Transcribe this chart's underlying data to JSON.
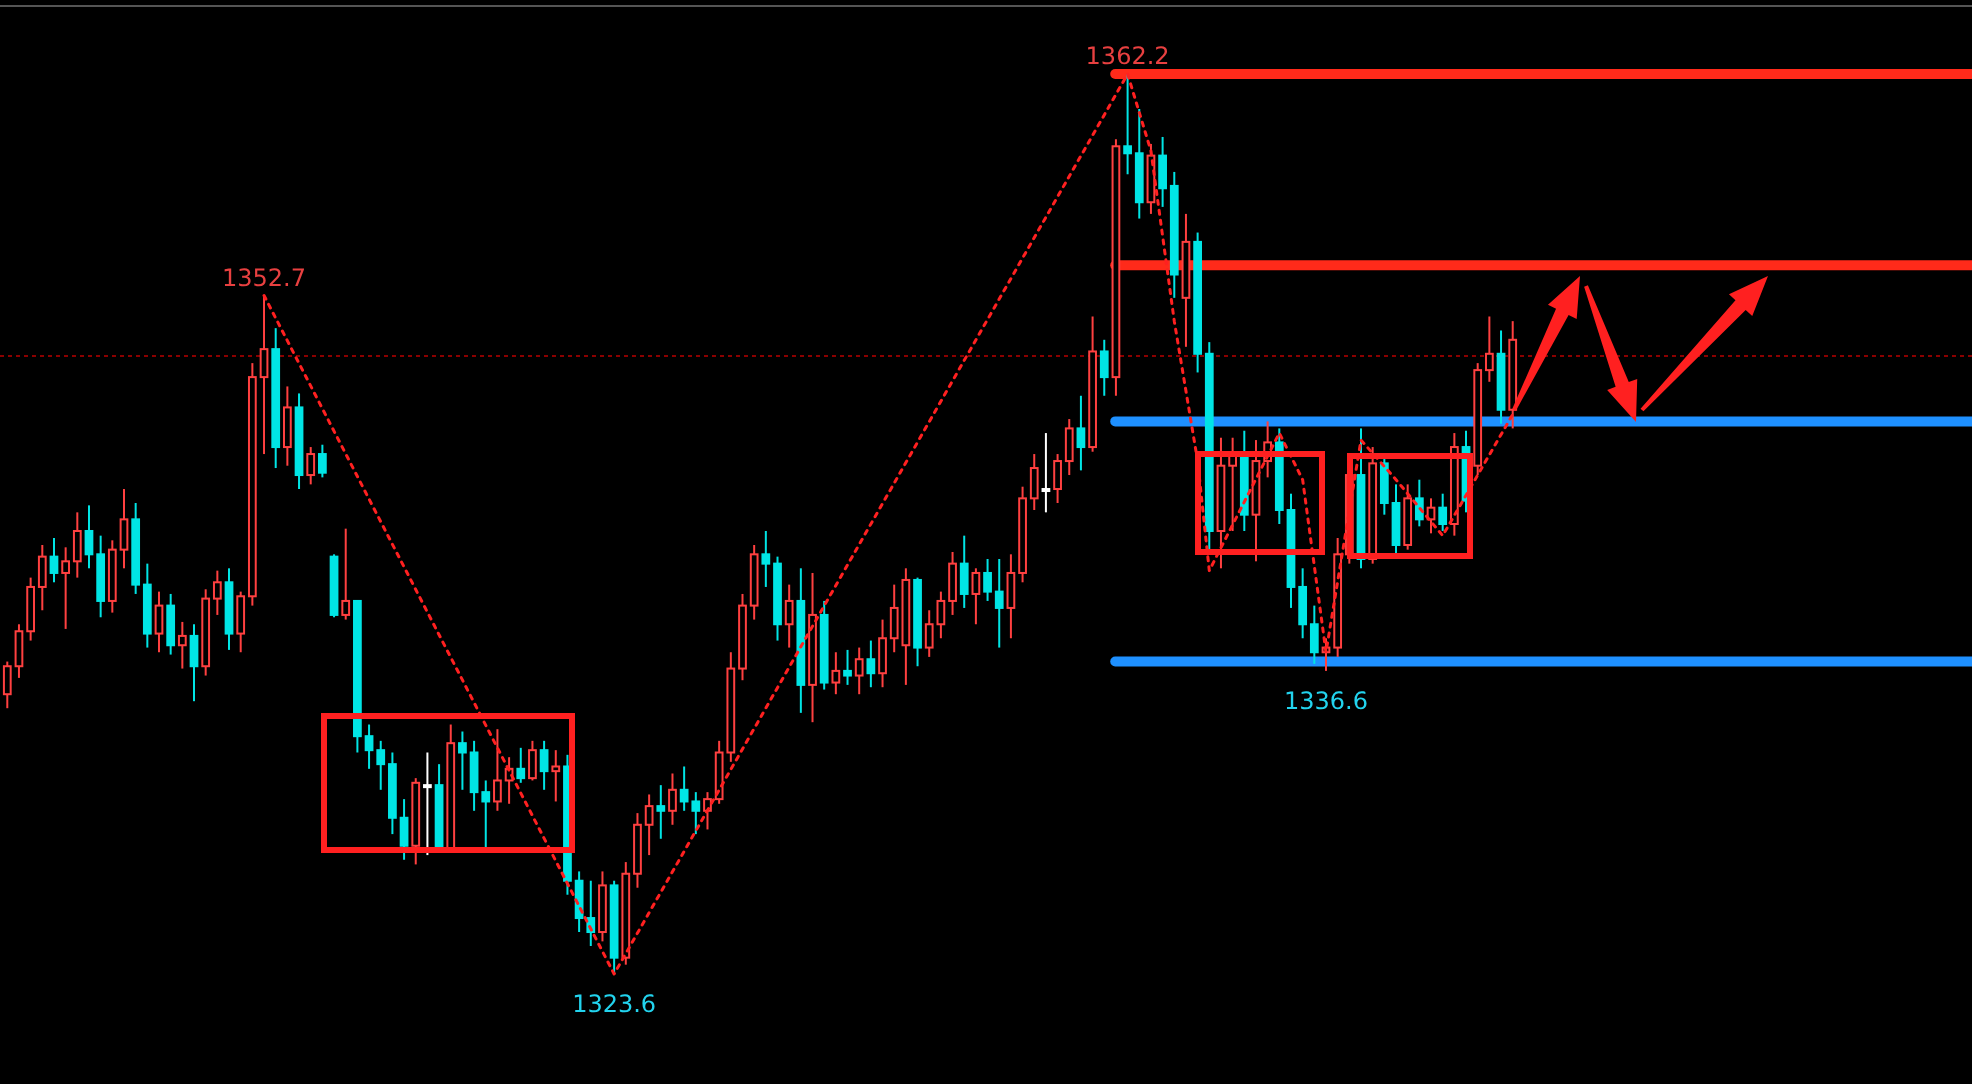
{
  "chart_data": {
    "type": "candlestick",
    "tick_labels": false,
    "grid": false,
    "categories": [
      null,
      null,
      null,
      null,
      null,
      null,
      null,
      null,
      null,
      null,
      null,
      null,
      null,
      null,
      null,
      null,
      null,
      null,
      null,
      null,
      null,
      null,
      null,
      null,
      null,
      null,
      null,
      null,
      null,
      null,
      null,
      null,
      null,
      null,
      null,
      null,
      null,
      null,
      null,
      null,
      null,
      null,
      null,
      null,
      null,
      null,
      null,
      null,
      null,
      null,
      null,
      null,
      null,
      null,
      null,
      null,
      null,
      null,
      null,
      null,
      null,
      null,
      null,
      null,
      null,
      null,
      null,
      null,
      null,
      null,
      null,
      null,
      null,
      null,
      null,
      null,
      null,
      null,
      null,
      null,
      null,
      null,
      null,
      null,
      null,
      null,
      null,
      null,
      null,
      null,
      null,
      null,
      null,
      null,
      null,
      null,
      null,
      null,
      null,
      null,
      null,
      null,
      null,
      null,
      null,
      null,
      null,
      null,
      null,
      null,
      null,
      null,
      null,
      null,
      null,
      null,
      null,
      null,
      null,
      null,
      null,
      null,
      null,
      null,
      null,
      null,
      null,
      null,
      null,
      null
    ],
    "ohlc": [
      [
        1335.6,
        1337.0,
        1335.0,
        1336.8
      ],
      [
        1336.8,
        1338.6,
        1336.3,
        1338.3
      ],
      [
        1338.3,
        1340.6,
        1337.9,
        1340.2
      ],
      [
        1340.2,
        1342.0,
        1339.2,
        1341.5
      ],
      [
        1341.5,
        1342.3,
        1340.4,
        1340.8
      ],
      [
        1340.8,
        1341.9,
        1338.4,
        1341.3
      ],
      [
        1341.3,
        1343.4,
        1340.6,
        1342.6
      ],
      [
        1342.6,
        1343.7,
        1341.0,
        1341.6
      ],
      [
        1341.6,
        1342.4,
        1338.9,
        1339.6
      ],
      [
        1339.6,
        1342.2,
        1339.1,
        1341.8
      ],
      [
        1341.8,
        1344.4,
        1341.0,
        1343.1
      ],
      [
        1343.1,
        1343.8,
        1339.9,
        1340.3
      ],
      [
        1340.3,
        1341.2,
        1337.6,
        1338.2
      ],
      [
        1338.2,
        1340.0,
        1337.4,
        1339.4
      ],
      [
        1339.4,
        1339.9,
        1337.3,
        1337.7
      ],
      [
        1337.7,
        1338.7,
        1336.7,
        1338.1
      ],
      [
        1338.1,
        1338.6,
        1335.3,
        1336.8
      ],
      [
        1336.8,
        1340.1,
        1336.4,
        1339.7
      ],
      [
        1339.7,
        1340.9,
        1339.0,
        1340.4
      ],
      [
        1340.4,
        1341.0,
        1337.5,
        1338.2
      ],
      [
        1338.2,
        1340.0,
        1337.4,
        1339.8
      ],
      [
        1339.8,
        1349.8,
        1339.4,
        1349.2
      ],
      [
        1349.2,
        1352.7,
        1345.9,
        1350.4
      ],
      [
        1350.4,
        1351.3,
        1345.3,
        1346.2
      ],
      [
        1346.2,
        1348.8,
        1345.4,
        1347.9
      ],
      [
        1347.9,
        1348.5,
        1344.4,
        1345.0
      ],
      [
        1345.0,
        1346.2,
        1344.6,
        1345.9
      ],
      [
        1345.9,
        1346.3,
        1344.9,
        1345.1
      ],
      [
        1341.5,
        1341.6,
        1338.9,
        1339.0
      ],
      [
        1339.0,
        1342.7,
        1338.8,
        1339.6
      ],
      [
        1339.6,
        1339.6,
        1333.1,
        1333.8
      ],
      [
        1333.8,
        1334.3,
        1332.4,
        1333.2
      ],
      [
        1333.2,
        1333.6,
        1331.5,
        1332.6
      ],
      [
        1332.6,
        1333.1,
        1329.6,
        1330.3
      ],
      [
        1330.3,
        1331.1,
        1328.5,
        1329.1
      ],
      [
        1329.1,
        1332.0,
        1328.3,
        1331.8
      ],
      [
        1331.7,
        1333.1,
        1328.7,
        1331.7
      ],
      [
        1331.7,
        1332.6,
        1328.9,
        1329.0
      ],
      [
        1329.0,
        1334.3,
        1328.9,
        1333.5
      ],
      [
        1333.5,
        1334.0,
        1331.5,
        1333.1
      ],
      [
        1333.1,
        1333.6,
        1330.6,
        1331.4
      ],
      [
        1331.4,
        1331.9,
        1329.0,
        1331.0
      ],
      [
        1331.0,
        1334.1,
        1330.6,
        1331.9
      ],
      [
        1331.9,
        1332.9,
        1330.9,
        1332.4
      ],
      [
        1332.4,
        1333.3,
        1331.8,
        1332.0
      ],
      [
        1332.0,
        1333.6,
        1331.9,
        1333.2
      ],
      [
        1333.2,
        1333.6,
        1331.5,
        1332.3
      ],
      [
        1332.3,
        1333.2,
        1331.0,
        1332.5
      ],
      [
        1332.5,
        1333.0,
        1327.0,
        1327.6
      ],
      [
        1327.6,
        1328.0,
        1325.4,
        1326.0
      ],
      [
        1326.0,
        1327.6,
        1324.8,
        1325.4
      ],
      [
        1325.4,
        1328.0,
        1325.0,
        1327.4
      ],
      [
        1327.4,
        1327.6,
        1323.6,
        1324.3
      ],
      [
        1324.3,
        1328.4,
        1324.0,
        1327.9
      ],
      [
        1327.9,
        1330.5,
        1327.3,
        1330.0
      ],
      [
        1330.0,
        1331.3,
        1328.7,
        1330.8
      ],
      [
        1330.8,
        1331.7,
        1329.4,
        1330.6
      ],
      [
        1330.6,
        1332.2,
        1330.0,
        1331.5
      ],
      [
        1331.5,
        1332.5,
        1330.6,
        1331.0
      ],
      [
        1331.0,
        1331.4,
        1329.6,
        1330.6
      ],
      [
        1330.6,
        1331.4,
        1329.8,
        1331.1
      ],
      [
        1331.1,
        1333.6,
        1330.9,
        1333.1
      ],
      [
        1333.1,
        1337.4,
        1332.7,
        1336.7
      ],
      [
        1336.7,
        1339.9,
        1336.2,
        1339.4
      ],
      [
        1339.4,
        1342.0,
        1338.8,
        1341.6
      ],
      [
        1341.6,
        1342.6,
        1340.2,
        1341.2
      ],
      [
        1341.2,
        1341.5,
        1337.9,
        1338.6
      ],
      [
        1338.6,
        1340.3,
        1337.6,
        1339.6
      ],
      [
        1339.6,
        1341.0,
        1334.8,
        1336.0
      ],
      [
        1336.0,
        1340.8,
        1334.4,
        1339.0
      ],
      [
        1339.0,
        1339.6,
        1335.8,
        1336.1
      ],
      [
        1336.1,
        1337.4,
        1335.6,
        1336.6
      ],
      [
        1336.6,
        1337.5,
        1336.0,
        1336.4
      ],
      [
        1336.4,
        1337.6,
        1335.6,
        1337.1
      ],
      [
        1337.1,
        1337.9,
        1335.9,
        1336.5
      ],
      [
        1336.5,
        1338.8,
        1335.9,
        1338.0
      ],
      [
        1338.0,
        1340.3,
        1337.4,
        1339.3
      ],
      [
        1337.7,
        1341.0,
        1336.0,
        1340.5
      ],
      [
        1340.5,
        1340.6,
        1336.8,
        1337.6
      ],
      [
        1337.6,
        1339.2,
        1337.2,
        1338.6
      ],
      [
        1338.6,
        1340.0,
        1338.0,
        1339.6
      ],
      [
        1339.6,
        1341.7,
        1339.0,
        1341.2
      ],
      [
        1341.2,
        1342.4,
        1339.3,
        1339.9
      ],
      [
        1339.9,
        1341.0,
        1338.6,
        1340.8
      ],
      [
        1340.8,
        1341.4,
        1339.6,
        1340.0
      ],
      [
        1340.0,
        1341.4,
        1337.6,
        1339.3
      ],
      [
        1339.3,
        1341.6,
        1338.0,
        1340.8
      ],
      [
        1340.8,
        1344.5,
        1340.4,
        1344.0
      ],
      [
        1344.0,
        1345.9,
        1343.5,
        1345.3
      ],
      [
        1344.4,
        1346.8,
        1343.4,
        1344.4
      ],
      [
        1344.4,
        1345.9,
        1343.8,
        1345.6
      ],
      [
        1345.6,
        1347.4,
        1345.0,
        1347.0
      ],
      [
        1347.0,
        1348.4,
        1345.2,
        1346.2
      ],
      [
        1346.2,
        1351.8,
        1346.0,
        1350.3
      ],
      [
        1350.3,
        1350.8,
        1348.4,
        1349.2
      ],
      [
        1349.2,
        1359.4,
        1348.4,
        1359.1
      ],
      [
        1359.1,
        1362.2,
        1357.9,
        1358.8
      ],
      [
        1358.8,
        1360.7,
        1356.0,
        1356.7
      ],
      [
        1356.7,
        1359.2,
        1356.2,
        1358.7
      ],
      [
        1358.7,
        1359.5,
        1356.5,
        1357.3
      ],
      [
        1357.4,
        1358.0,
        1352.6,
        1353.6
      ],
      [
        1352.6,
        1356.2,
        1350.5,
        1355.0
      ],
      [
        1355.0,
        1355.4,
        1349.4,
        1350.2
      ],
      [
        1350.2,
        1350.7,
        1341.8,
        1342.6
      ],
      [
        1342.6,
        1346.6,
        1341.0,
        1345.4
      ],
      [
        1345.4,
        1346.6,
        1342.6,
        1345.9
      ],
      [
        1345.9,
        1346.9,
        1342.6,
        1343.3
      ],
      [
        1343.3,
        1346.5,
        1341.3,
        1345.6
      ],
      [
        1345.6,
        1347.3,
        1344.9,
        1346.4
      ],
      [
        1346.4,
        1347.0,
        1342.9,
        1343.5
      ],
      [
        1343.5,
        1344.2,
        1339.3,
        1340.2
      ],
      [
        1340.2,
        1341.0,
        1338.0,
        1338.6
      ],
      [
        1338.6,
        1339.4,
        1336.9,
        1337.4
      ],
      [
        1337.4,
        1338.0,
        1336.6,
        1337.6
      ],
      [
        1337.6,
        1342.3,
        1337.2,
        1341.6
      ],
      [
        1341.6,
        1345.6,
        1341.2,
        1345.0
      ],
      [
        1345.0,
        1347.0,
        1341.0,
        1341.4
      ],
      [
        1341.4,
        1346.2,
        1341.2,
        1345.5
      ],
      [
        1345.5,
        1345.9,
        1343.3,
        1343.8
      ],
      [
        1343.8,
        1344.6,
        1341.5,
        1342.0
      ],
      [
        1342.0,
        1344.6,
        1341.8,
        1344.0
      ],
      [
        1344.0,
        1344.8,
        1342.8,
        1343.1
      ],
      [
        1343.1,
        1344.0,
        1342.5,
        1343.6
      ],
      [
        1343.6,
        1344.2,
        1342.6,
        1342.9
      ],
      [
        1342.9,
        1346.8,
        1342.4,
        1346.2
      ],
      [
        1346.2,
        1346.9,
        1343.4,
        1343.9
      ],
      [
        1345.4,
        1349.8,
        1345.0,
        1349.5
      ],
      [
        1349.5,
        1351.8,
        1349.0,
        1350.2
      ],
      [
        1350.2,
        1351.2,
        1347.2,
        1347.8
      ],
      [
        1347.8,
        1351.6,
        1347.0,
        1350.8
      ]
    ],
    "colors": [
      "#ff4040",
      "#ff4040",
      "#ff4040",
      "#ff4040",
      "#00e5e5",
      "#ff4040",
      "#ff4040",
      "#00e5e5",
      "#00e5e5",
      "#ff4040",
      "#ff4040",
      "#00e5e5",
      "#00e5e5",
      "#ff4040",
      "#00e5e5",
      "#ff4040",
      "#00e5e5",
      "#ff4040",
      "#ff4040",
      "#00e5e5",
      "#ff4040",
      "#ff4040",
      "#ff4040",
      "#00e5e5",
      "#ff4040",
      "#00e5e5",
      "#ff4040",
      "#00e5e5",
      "#00e5e5",
      "#ff4040",
      "#00e5e5",
      "#00e5e5",
      "#00e5e5",
      "#00e5e5",
      "#00e5e5",
      "#ff4040",
      "#ffffff",
      "#00e5e5",
      "#ff4040",
      "#00e5e5",
      "#00e5e5",
      "#00e5e5",
      "#ff4040",
      "#ff4040",
      "#00e5e5",
      "#ff4040",
      "#00e5e5",
      "#ff4040",
      "#00e5e5",
      "#00e5e5",
      "#00e5e5",
      "#ff4040",
      "#00e5e5",
      "#ff4040",
      "#ff4040",
      "#ff4040",
      "#00e5e5",
      "#ff4040",
      "#00e5e5",
      "#00e5e5",
      "#ff4040",
      "#ff4040",
      "#ff4040",
      "#ff4040",
      "#ff4040",
      "#00e5e5",
      "#00e5e5",
      "#ff4040",
      "#00e5e5",
      "#ff4040",
      "#00e5e5",
      "#ff4040",
      "#00e5e5",
      "#ff4040",
      "#00e5e5",
      "#ff4040",
      "#ff4040",
      "#ff4040",
      "#00e5e5",
      "#ff4040",
      "#ff4040",
      "#ff4040",
      "#00e5e5",
      "#ff4040",
      "#00e5e5",
      "#00e5e5",
      "#ff4040",
      "#ff4040",
      "#ff4040",
      "#ffffff",
      "#ff4040",
      "#ff4040",
      "#00e5e5",
      "#ff4040",
      "#00e5e5",
      "#ff4040",
      "#00e5e5",
      "#00e5e5",
      "#ff4040",
      "#00e5e5",
      "#00e5e5",
      "#ff4040",
      "#00e5e5",
      "#00e5e5",
      "#ff4040",
      "#ff4040",
      "#00e5e5",
      "#ff4040",
      "#ff4040",
      "#00e5e5",
      "#00e5e5",
      "#00e5e5",
      "#00e5e5",
      "#ff4040",
      "#ff4040",
      "#ff4040",
      "#00e5e5",
      "#ff4040",
      "#00e5e5",
      "#00e5e5",
      "#ff4040",
      "#00e5e5",
      "#ff4040",
      "#00e5e5",
      "#ff4040",
      "#00e5e5",
      "#ff4040",
      "#ff4040",
      "#00e5e5",
      "#ff4040"
    ],
    "series": [
      {
        "type": "line",
        "color": "#ff2020",
        "line_style": "dotted",
        "marker": "none",
        "values": [
          null,
          null,
          null,
          null,
          null,
          null,
          null,
          null,
          null,
          null,
          null,
          null,
          null,
          null,
          null,
          null,
          null,
          null,
          null,
          null,
          null,
          null,
          1352.7,
          null,
          null,
          null,
          null,
          null,
          null,
          null,
          null,
          null,
          null,
          null,
          null,
          null,
          null,
          null,
          null,
          null,
          null,
          null,
          null,
          null,
          null,
          null,
          null,
          null,
          null,
          null,
          null,
          null,
          1323.6,
          null,
          null,
          null,
          null,
          null,
          null,
          null,
          null,
          null,
          null,
          null,
          null,
          null,
          null,
          null,
          null,
          null,
          null,
          null,
          null,
          null,
          null,
          null,
          null,
          null,
          null,
          null,
          null,
          null,
          null,
          null,
          null,
          null,
          null,
          null,
          null,
          null,
          null,
          null,
          null,
          null,
          null,
          null,
          1362.2,
          null,
          1358.9,
          null,
          1351.6,
          null,
          1345.6,
          1340.9,
          null,
          null,
          null,
          null,
          null,
          1346.8,
          null,
          1344.8,
          null,
          1337.4,
          null,
          null,
          1346.5,
          null,
          null,
          1344.8,
          null,
          null,
          null,
          1342.4,
          null,
          null,
          null,
          null,
          null,
          1347.6
        ]
      }
    ],
    "annotations": [
      {
        "text": "1352.7",
        "y": 1352.7
      },
      {
        "text": "1323.6",
        "y": 1323.6
      },
      {
        "text": "1362.2",
        "y": 1362.2
      },
      {
        "text": "1336.6",
        "y": 1336.6
      }
    ],
    "ref_lines": [
      {
        "axis": "y",
        "value": 1362.2,
        "color": "#ff2a1a"
      },
      {
        "axis": "y",
        "value": 1354.0,
        "color": "#ff2a1a"
      },
      {
        "axis": "y",
        "value": 1347.3,
        "color": "#1e90ff"
      },
      {
        "axis": "y",
        "value": 1337.0,
        "color": "#1e90ff"
      },
      {
        "axis": "y",
        "value": 1350.1,
        "color": "#8b0000",
        "line_style": "dotted"
      }
    ]
  }
}
